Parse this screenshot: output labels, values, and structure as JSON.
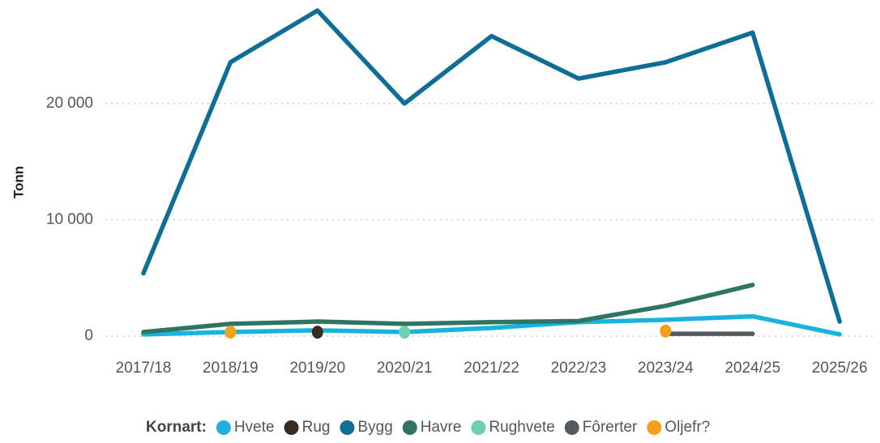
{
  "chart_data": {
    "type": "line",
    "y_label": "Tonn",
    "legend_title": "Kornart:",
    "categories": [
      "2017/18",
      "2018/19",
      "2019/20",
      "2020/21",
      "2021/22",
      "2022/23",
      "2023/24",
      "2024/25",
      "2025/26"
    ],
    "series": [
      {
        "name": "Hvete",
        "color": "#1ab3e0",
        "values": [
          150,
          350,
          500,
          350,
          700,
          1200,
          1400,
          1700,
          150
        ]
      },
      {
        "name": "Rug",
        "color": "#3b2a20",
        "values": [
          null,
          null,
          200,
          null,
          null,
          null,
          null,
          null,
          null
        ]
      },
      {
        "name": "Bygg",
        "color": "#0e6e96",
        "values": [
          5400,
          23550,
          28000,
          20000,
          25800,
          22150,
          23550,
          26100,
          1250
        ]
      },
      {
        "name": "Havre",
        "color": "#2f7563",
        "values": [
          350,
          1050,
          1250,
          1050,
          1200,
          1300,
          2600,
          4400,
          null
        ]
      },
      {
        "name": "Rughvete",
        "color": "#6fd0b1",
        "values": [
          null,
          null,
          null,
          200,
          null,
          null,
          null,
          null,
          null
        ]
      },
      {
        "name": "Fôrerter",
        "color": "#555a5e",
        "values": [
          null,
          null,
          null,
          null,
          null,
          null,
          200,
          200,
          null
        ]
      },
      {
        "name": "Oljefr?",
        "color": "#f6a01a",
        "values": [
          null,
          200,
          null,
          null,
          null,
          null,
          300,
          null,
          null
        ]
      }
    ],
    "ylim": [
      0,
      28000
    ],
    "yticks": [
      0,
      {
        "value": 10000,
        "label": "10 000"
      },
      {
        "value": 20000,
        "label": "20 000"
      }
    ],
    "grid": true
  }
}
